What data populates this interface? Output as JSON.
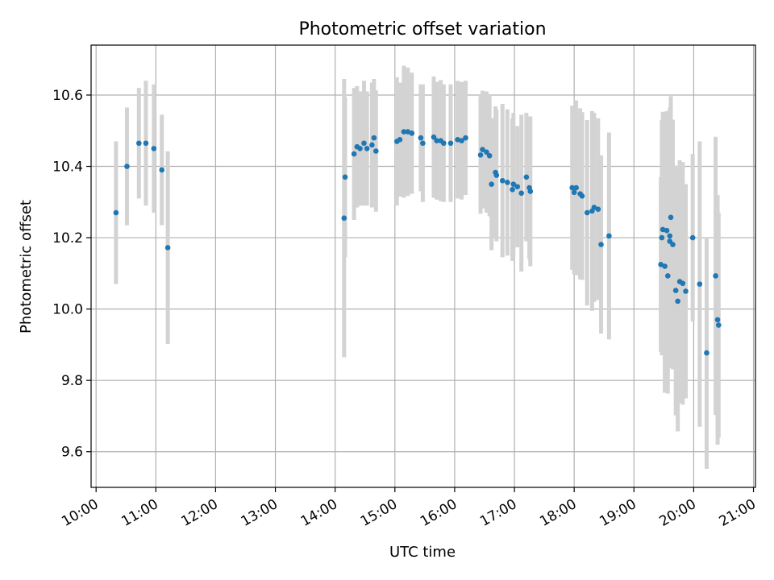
{
  "chart_data": {
    "type": "scatter",
    "title": "Photometric offset variation",
    "xlabel": "UTC time",
    "ylabel": "Photometric offset",
    "xlim": [
      "09:55",
      "21:02"
    ],
    "ylim": [
      9.5,
      10.74
    ],
    "grid": true,
    "xticks": [
      "10:00",
      "11:00",
      "12:00",
      "13:00",
      "14:00",
      "15:00",
      "16:00",
      "17:00",
      "18:00",
      "19:00",
      "20:00",
      "21:00"
    ],
    "yticks": [
      9.6,
      9.8,
      10.0,
      10.2,
      10.4,
      10.6
    ],
    "ytick_labels": [
      "9.6",
      "9.8",
      "10.0",
      "10.2",
      "10.4",
      "10.6"
    ],
    "colors": {
      "points": "#1f77b4",
      "errorbars": "#d3d3d3",
      "grid": "#b0b0b0"
    },
    "series": [
      {
        "x": [
          "10:20",
          "10:31",
          "10:43",
          "10:50",
          "10:58",
          "11:06",
          "11:12",
          "14:09",
          "14:10",
          "14:19",
          "14:22",
          "14:25",
          "14:29",
          "14:32",
          "14:37",
          "14:39",
          "14:41",
          "15:02",
          "15:05",
          "15:09",
          "15:13",
          "15:17",
          "15:26",
          "15:28",
          "15:39",
          "15:42",
          "15:46",
          "15:49",
          "15:56",
          "16:03",
          "16:07",
          "16:11",
          "16:26",
          "16:28",
          "16:32",
          "16:35",
          "16:37",
          "16:41",
          "16:42",
          "16:48",
          "16:53",
          "16:58",
          "16:59",
          "17:03",
          "17:07",
          "17:12",
          "17:15",
          "17:16",
          "17:58",
          "18:00",
          "18:02",
          "18:06",
          "18:08",
          "18:13",
          "18:18",
          "18:20",
          "18:24",
          "18:27",
          "18:35",
          "19:27",
          "19:28",
          "19:29",
          "19:31",
          "19:33",
          "19:34",
          "19:36",
          "19:36",
          "19:37",
          "19:39",
          "19:42",
          "19:44",
          "19:46",
          "19:49",
          "19:52",
          "19:59",
          "20:06",
          "20:13",
          "20:22",
          "20:24",
          "20:25"
        ],
        "y": [
          10.27,
          10.4,
          10.465,
          10.465,
          10.45,
          10.39,
          10.172,
          10.255,
          10.37,
          10.435,
          10.455,
          10.45,
          10.465,
          10.45,
          10.46,
          10.48,
          10.443,
          10.47,
          10.475,
          10.497,
          10.497,
          10.493,
          10.48,
          10.465,
          10.482,
          10.472,
          10.472,
          10.465,
          10.465,
          10.475,
          10.472,
          10.48,
          10.432,
          10.447,
          10.44,
          10.43,
          10.35,
          10.383,
          10.375,
          10.36,
          10.355,
          10.335,
          10.35,
          10.343,
          10.325,
          10.37,
          10.34,
          10.33,
          10.34,
          10.327,
          10.34,
          10.323,
          10.317,
          10.27,
          10.275,
          10.285,
          10.28,
          10.181,
          10.205,
          10.125,
          10.2,
          10.223,
          10.12,
          10.22,
          10.093,
          10.205,
          10.19,
          10.257,
          10.181,
          10.052,
          10.022,
          10.077,
          10.072,
          10.05,
          10.2,
          10.07,
          9.877,
          10.093,
          9.97,
          9.955
        ],
        "yerr": [
          0.2,
          0.165,
          0.155,
          0.175,
          0.18,
          0.155,
          0.27,
          0.39,
          0.225,
          0.185,
          0.17,
          0.16,
          0.175,
          0.16,
          0.175,
          0.165,
          0.17,
          0.18,
          0.16,
          0.185,
          0.18,
          0.17,
          0.15,
          0.165,
          0.17,
          0.165,
          0.17,
          0.165,
          0.165,
          0.165,
          0.165,
          0.16,
          0.165,
          0.165,
          0.17,
          0.17,
          0.185,
          0.185,
          0.185,
          0.215,
          0.205,
          0.2,
          0.2,
          0.17,
          0.22,
          0.18,
          0.2,
          0.21,
          0.23,
          0.23,
          0.245,
          0.24,
          0.235,
          0.26,
          0.28,
          0.265,
          0.255,
          0.25,
          0.29,
          0.245,
          0.33,
          0.33,
          0.355,
          0.335,
          0.33,
          0.36,
          0.355,
          0.34,
          0.35,
          0.35,
          0.365,
          0.34,
          0.34,
          0.3,
          0.235,
          0.4,
          0.325,
          0.39,
          0.35,
          0.315
        ]
      }
    ]
  }
}
